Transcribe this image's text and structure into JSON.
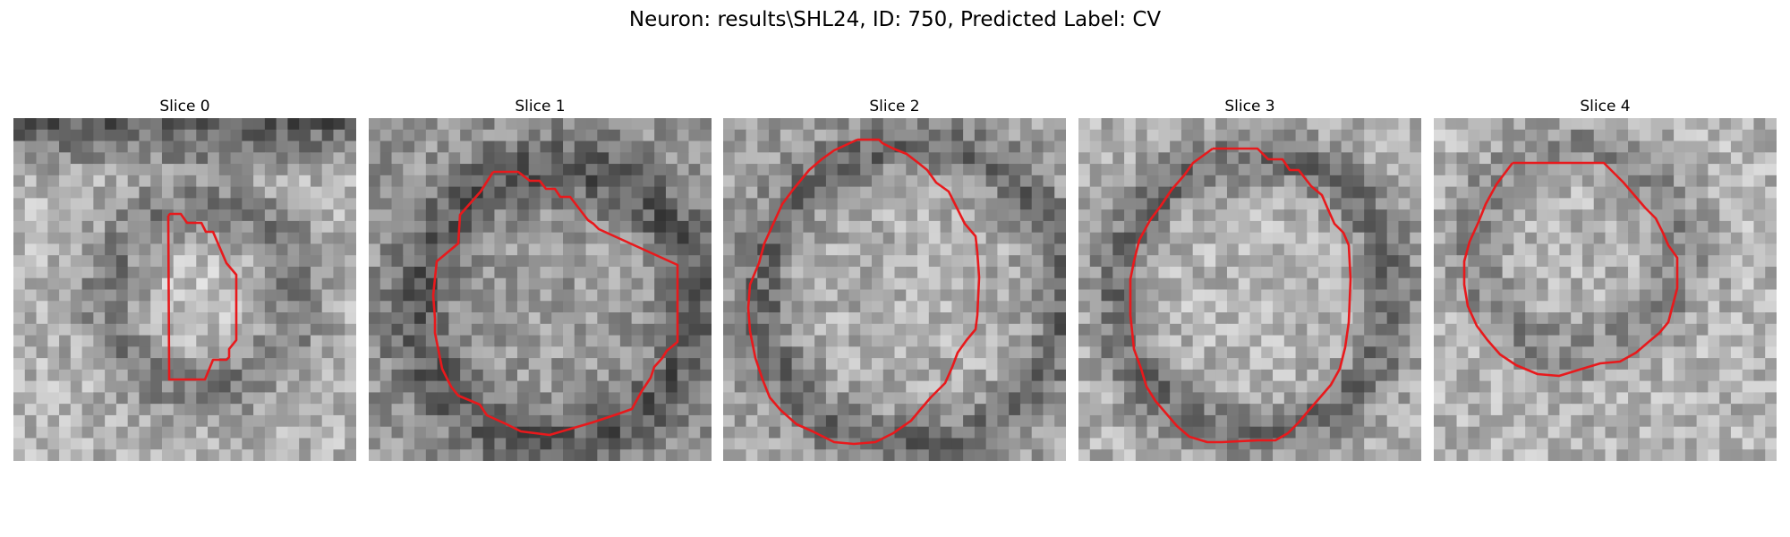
{
  "title": "Neuron: results\\SHL24, ID: 750, Predicted Label: CV",
  "panels": [
    {
      "title": "Slice 0"
    },
    {
      "title": "Slice 1"
    },
    {
      "title": "Slice 2"
    },
    {
      "title": "Slice 3"
    },
    {
      "title": "Slice 4"
    }
  ],
  "colors": {
    "contour": "#e8191c",
    "background": "#ffffff",
    "image_colormap": "grayscale"
  }
}
